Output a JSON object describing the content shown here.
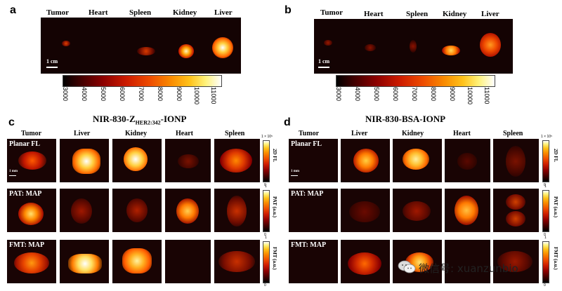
{
  "panels": {
    "a": {
      "letter": "a",
      "organs": [
        "Tumor",
        "Heart",
        "Spleen",
        "Kidney",
        "Liver"
      ],
      "scalebar_label": "1 cm",
      "colorbar_ticks": [
        "3000",
        "4000",
        "5000",
        "6000",
        "7000",
        "8000",
        "9000",
        "10000",
        "11000"
      ]
    },
    "b": {
      "letter": "b",
      "organs": [
        "Tumor",
        "Heart",
        "Spleen",
        "Kidney",
        "Liver"
      ],
      "scalebar_label": "1 cm",
      "colorbar_ticks": [
        "3000",
        "4000",
        "5000",
        "6000",
        "7000",
        "8000",
        "9000",
        "10000",
        "11000"
      ]
    },
    "c": {
      "letter": "c",
      "title_main": "NIR-830-Z",
      "title_sub": "HER2:342",
      "title_tail": "-IONP",
      "columns": [
        "Tumor",
        "Liver",
        "Kidney",
        "Heart",
        "Spleen"
      ],
      "rows": [
        {
          "label": "Planar FL",
          "bar_top": "1 × 10⁵",
          "bar_bottom": "0",
          "bar_side": "2D FL"
        },
        {
          "label": "PAT: MAP",
          "bar_top": "1",
          "bar_bottom": "0",
          "bar_side": "PAT (a.u.)"
        },
        {
          "label": "FMT: MAP",
          "bar_top": "1",
          "bar_bottom": "0",
          "bar_side": "FMT (a.u.)"
        }
      ],
      "scalebar_label": "1 mm"
    },
    "d": {
      "letter": "d",
      "title_main": "NIR-830-BSA-IONP",
      "columns": [
        "Tumor",
        "Liver",
        "Kidney",
        "Heart",
        "Spleen"
      ],
      "rows": [
        {
          "label": "Planar FL",
          "bar_top": "1 × 10⁵",
          "bar_bottom": "0",
          "bar_side": "2D FL"
        },
        {
          "label": "PAT: MAP",
          "bar_top": "1",
          "bar_bottom": "0",
          "bar_side": "PAT (a.u.)"
        },
        {
          "label": "FMT: MAP",
          "bar_top": "1",
          "bar_bottom": "0",
          "bar_side": "FMT (a.u.)"
        }
      ],
      "scalebar_label": "1 mm"
    }
  },
  "watermark": {
    "text": "微信号: xuanzunbio",
    "icon": "wechat-icon"
  },
  "colors": {
    "background_dark": "#190404",
    "hot_core": "#fff3b0",
    "hot_mid": "#ff8a00",
    "hot_low": "#c21500"
  }
}
